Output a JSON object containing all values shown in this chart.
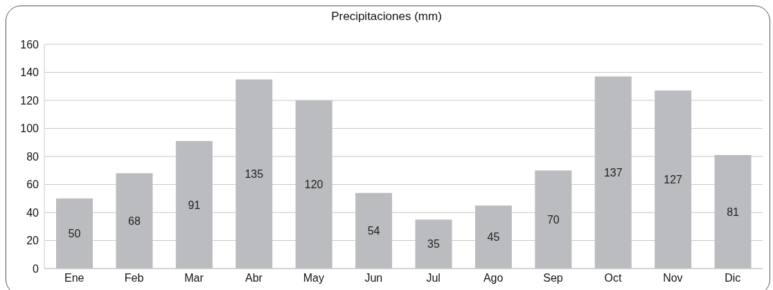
{
  "chart_data": {
    "type": "bar",
    "title": "Precipitaciones (mm)",
    "categories": [
      "Ene",
      "Feb",
      "Mar",
      "Abr",
      "May",
      "Jun",
      "Jul",
      "Ago",
      "Sep",
      "Oct",
      "Nov",
      "Dic"
    ],
    "values": [
      50,
      68,
      91,
      135,
      120,
      54,
      35,
      45,
      70,
      137,
      127,
      81
    ],
    "color": "#bbbcc0",
    "ylim": [
      0,
      160
    ],
    "yticks": [
      0,
      20,
      40,
      60,
      80,
      100,
      120,
      140,
      160
    ],
    "grid": "y",
    "data_labels": true,
    "legend": false
  }
}
